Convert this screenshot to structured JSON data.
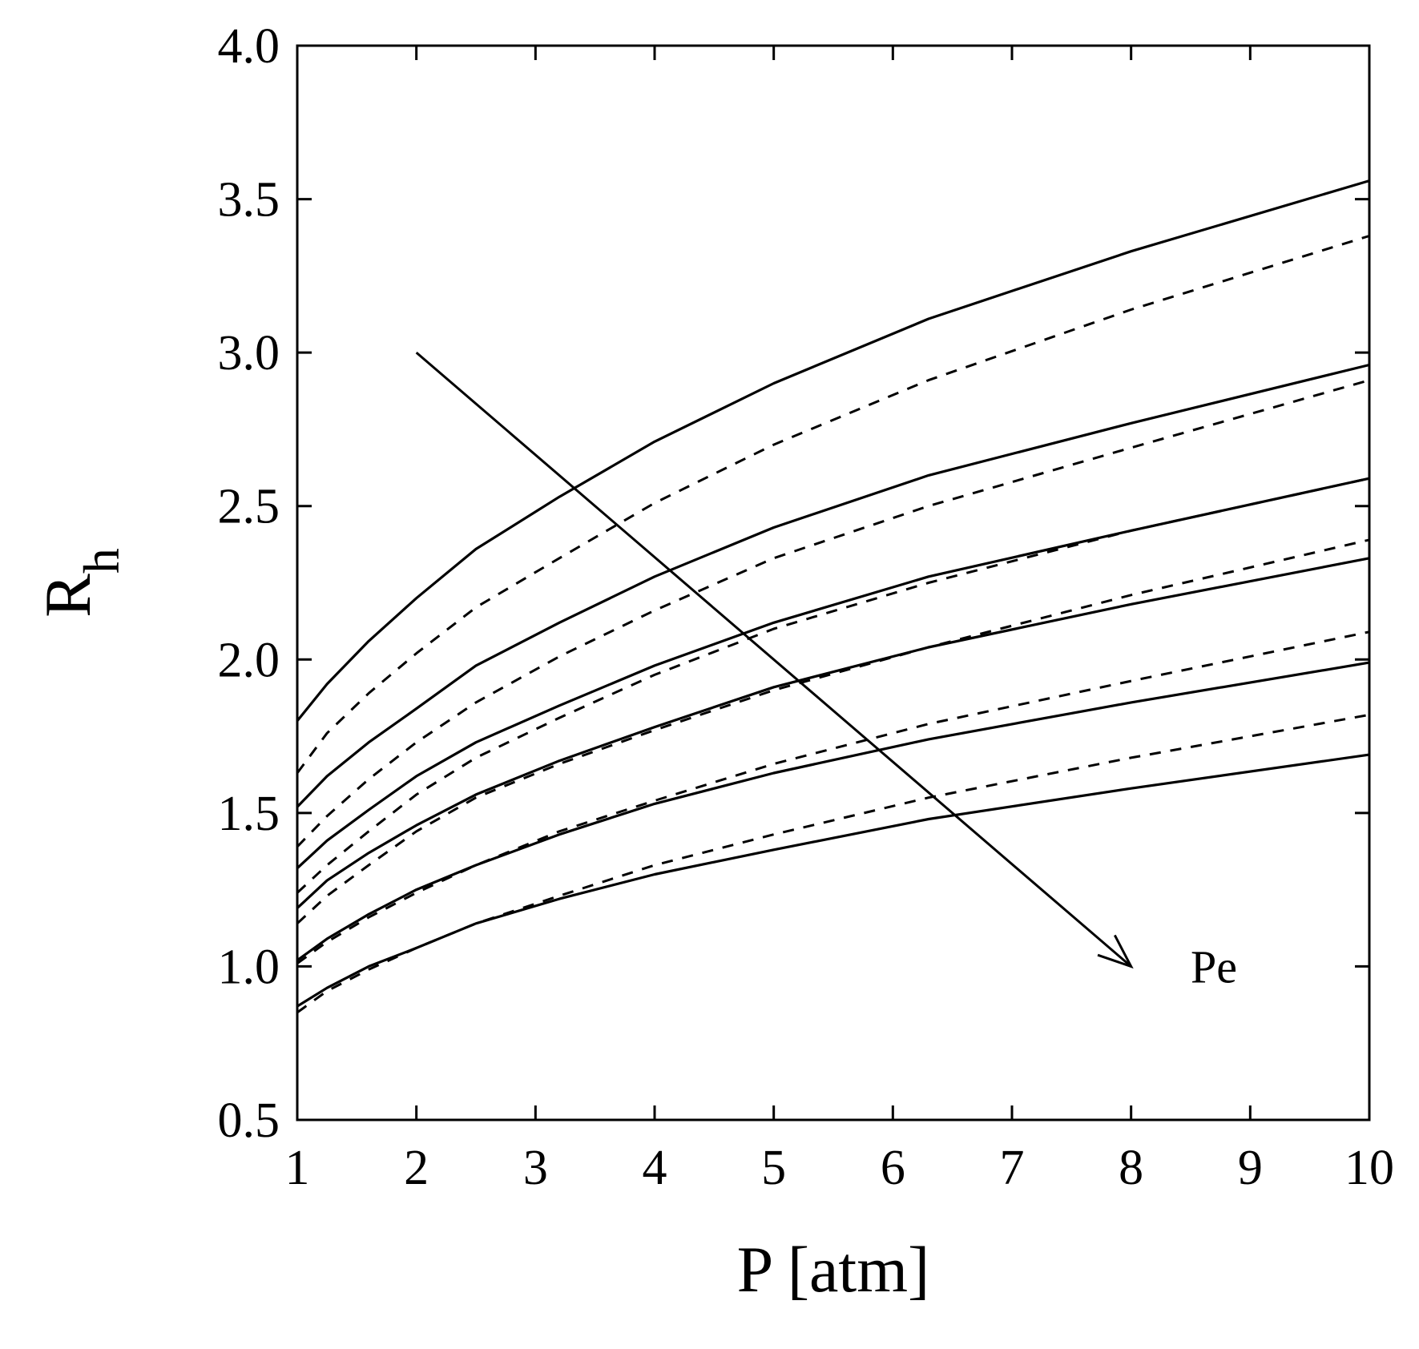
{
  "chart_data": {
    "type": "line",
    "xlabel": "P [atm]",
    "ylabel_main": "R",
    "ylabel_sub": "h",
    "xlim": [
      1,
      10
    ],
    "ylim": [
      0.5,
      4.0
    ],
    "x_ticks": [
      "1",
      "2",
      "3",
      "4",
      "5",
      "6",
      "7",
      "8",
      "9",
      "10"
    ],
    "x_tick_values": [
      1,
      2,
      3,
      4,
      5,
      6,
      7,
      8,
      9,
      10
    ],
    "y_ticks": [
      "0.5",
      "1.0",
      "1.5",
      "2.0",
      "2.5",
      "3.0",
      "3.5",
      "4.0"
    ],
    "y_tick_values": [
      0.5,
      1.0,
      1.5,
      2.0,
      2.5,
      3.0,
      3.5,
      4.0
    ],
    "grid": false,
    "x": [
      1,
      1.25,
      1.6,
      2,
      2.5,
      3.2,
      4,
      5,
      6.3,
      8,
      10
    ],
    "series": [
      {
        "style": "solid",
        "values": [
          1.8,
          1.92,
          2.06,
          2.2,
          2.36,
          2.53,
          2.71,
          2.9,
          3.11,
          3.33,
          3.56
        ]
      },
      {
        "style": "dashed",
        "values": [
          1.63,
          1.76,
          1.89,
          2.02,
          2.17,
          2.33,
          2.51,
          2.7,
          2.91,
          3.14,
          3.38
        ]
      },
      {
        "style": "solid",
        "values": [
          1.52,
          1.62,
          1.73,
          1.84,
          1.98,
          2.12,
          2.27,
          2.43,
          2.6,
          2.77,
          2.96
        ]
      },
      {
        "style": "dashed",
        "values": [
          1.39,
          1.49,
          1.61,
          1.73,
          1.86,
          2.01,
          2.16,
          2.33,
          2.5,
          2.69,
          2.91
        ]
      },
      {
        "style": "solid",
        "values": [
          1.32,
          1.41,
          1.51,
          1.62,
          1.73,
          1.85,
          1.98,
          2.12,
          2.27,
          2.42,
          2.59
        ]
      },
      {
        "style": "dashed",
        "values": [
          1.24,
          1.33,
          1.44,
          1.56,
          1.68,
          1.81,
          1.95,
          2.1,
          2.25,
          2.42,
          2.59
        ]
      },
      {
        "style": "solid",
        "values": [
          1.19,
          1.28,
          1.37,
          1.46,
          1.56,
          1.67,
          1.78,
          1.91,
          2.04,
          2.18,
          2.33
        ]
      },
      {
        "style": "dashed",
        "values": [
          1.14,
          1.23,
          1.33,
          1.44,
          1.55,
          1.66,
          1.77,
          1.9,
          2.04,
          2.21,
          2.39
        ]
      },
      {
        "style": "solid",
        "values": [
          1.02,
          1.09,
          1.17,
          1.25,
          1.33,
          1.43,
          1.53,
          1.63,
          1.74,
          1.86,
          1.99
        ]
      },
      {
        "style": "dashed",
        "values": [
          1.01,
          1.08,
          1.16,
          1.24,
          1.33,
          1.44,
          1.54,
          1.66,
          1.79,
          1.93,
          2.09
        ]
      },
      {
        "style": "solid",
        "values": [
          0.87,
          0.93,
          1.0,
          1.06,
          1.14,
          1.22,
          1.3,
          1.38,
          1.48,
          1.58,
          1.69
        ]
      },
      {
        "style": "dashed",
        "values": [
          0.85,
          0.92,
          0.99,
          1.06,
          1.14,
          1.23,
          1.33,
          1.43,
          1.55,
          1.68,
          1.82
        ]
      }
    ],
    "annotation": {
      "text": "Pe",
      "arrow_from": [
        2,
        3.0
      ],
      "arrow_to": [
        8,
        1.0
      ],
      "text_at": [
        8.5,
        1.0
      ]
    }
  }
}
